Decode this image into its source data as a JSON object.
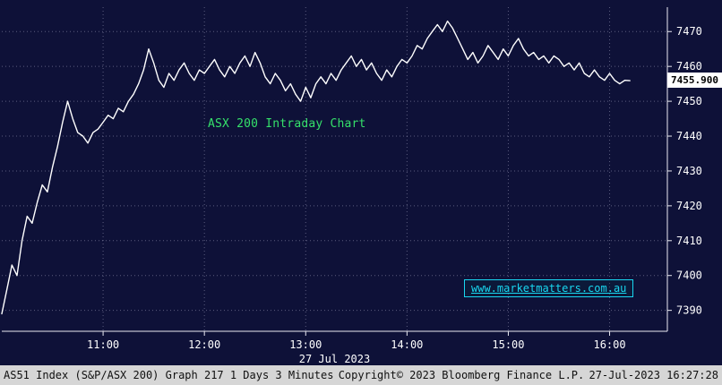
{
  "colors": {
    "background": "#0e1138",
    "line": "#ffffff",
    "grid": "#9a9ab8",
    "annotation_green": "#35e06a",
    "link_cyan": "#19d7f0",
    "statusbar_bg": "#d6d6d6",
    "price_label_bg": "#ffffff"
  },
  "chart_data": {
    "type": "line",
    "title": "ASX 200 Intraday Chart",
    "x_unit": "hour_of_day",
    "xlim": [
      10.0,
      16.57
    ],
    "ylim": [
      7384,
      7477
    ],
    "yticks": [
      7390,
      7400,
      7410,
      7420,
      7430,
      7440,
      7450,
      7460,
      7470
    ],
    "xticks": [
      {
        "v": 11,
        "label": "11:00"
      },
      {
        "v": 12,
        "label": "12:00"
      },
      {
        "v": 13,
        "label": "13:00"
      },
      {
        "v": 14,
        "label": "14:00"
      },
      {
        "v": 15,
        "label": "15:00"
      },
      {
        "v": 16,
        "label": "16:00"
      }
    ],
    "x_date_label": "27 Jul 2023",
    "last_price": "7455.900",
    "last_price_value": 7455.9,
    "grid": true,
    "legend": false,
    "series": [
      {
        "name": "AS51 Index",
        "x_start": 10.0,
        "x_step": 0.05,
        "values": [
          7389,
          7396,
          7403,
          7400,
          7410,
          7417,
          7415,
          7421,
          7426,
          7424,
          7431,
          7437,
          7444,
          7450,
          7445,
          7441,
          7440,
          7438,
          7441,
          7442,
          7444,
          7446,
          7445,
          7448,
          7447,
          7450,
          7452,
          7455,
          7459,
          7465,
          7461,
          7456,
          7454,
          7458,
          7456,
          7459,
          7461,
          7458,
          7456,
          7459,
          7458,
          7460,
          7462,
          7459,
          7457,
          7460,
          7458,
          7461,
          7463,
          7460,
          7464,
          7461,
          7457,
          7455,
          7458,
          7456,
          7453,
          7455,
          7452,
          7450,
          7454,
          7451,
          7455,
          7457,
          7455,
          7458,
          7456,
          7459,
          7461,
          7463,
          7460,
          7462,
          7459,
          7461,
          7458,
          7456,
          7459,
          7457,
          7460,
          7462,
          7461,
          7463,
          7466,
          7465,
          7468,
          7470,
          7472,
          7470,
          7473,
          7471,
          7468,
          7465,
          7462,
          7464,
          7461,
          7463,
          7466,
          7464,
          7462,
          7465,
          7463,
          7466,
          7468,
          7465,
          7463,
          7464,
          7462,
          7463,
          7461,
          7463,
          7462,
          7460,
          7461,
          7459,
          7461,
          7458,
          7457,
          7459,
          7457,
          7456,
          7458,
          7456,
          7455,
          7456,
          7455.9
        ]
      }
    ]
  },
  "annotation": {
    "text": "ASX 200 Intraday Chart"
  },
  "watermark": {
    "text": "www.marketmatters.com.au"
  },
  "statusbar": {
    "left": "AS51 Index (S&P/ASX 200) Graph 217 1 Days 3 Minutes",
    "center": "Copyright© 2023 Bloomberg Finance L.P.",
    "right": "27-Jul-2023 16:27:28"
  }
}
